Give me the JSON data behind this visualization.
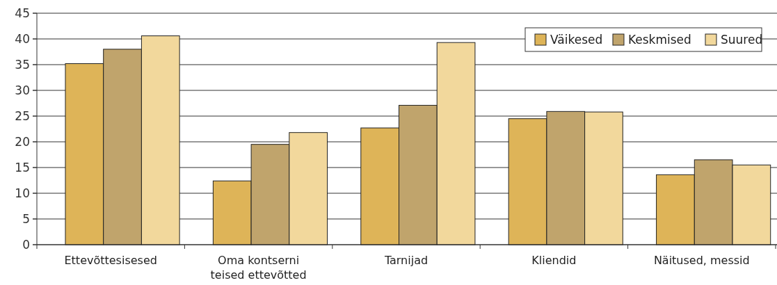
{
  "chart_data": {
    "type": "bar",
    "categories": [
      "Ettevõttesisesed",
      "Oma kontserni teised ettevõtted",
      "Tarnijad",
      "Kliendid",
      "Näitused, messid"
    ],
    "series": [
      {
        "name": "Väikesed",
        "color": "#deb458",
        "values": [
          35.2,
          12.4,
          22.7,
          24.5,
          13.6
        ]
      },
      {
        "name": "Keskmised",
        "color": "#c0a46c",
        "values": [
          38.0,
          19.5,
          27.1,
          25.9,
          16.5
        ]
      },
      {
        "name": "Suured",
        "color": "#f2d89c",
        "values": [
          40.6,
          21.8,
          39.3,
          25.8,
          15.5
        ]
      }
    ],
    "ylim": [
      0,
      45
    ],
    "yticks": [
      0,
      5,
      10,
      15,
      20,
      25,
      30,
      35,
      40,
      45
    ],
    "grid": "y",
    "legend": "top right"
  }
}
